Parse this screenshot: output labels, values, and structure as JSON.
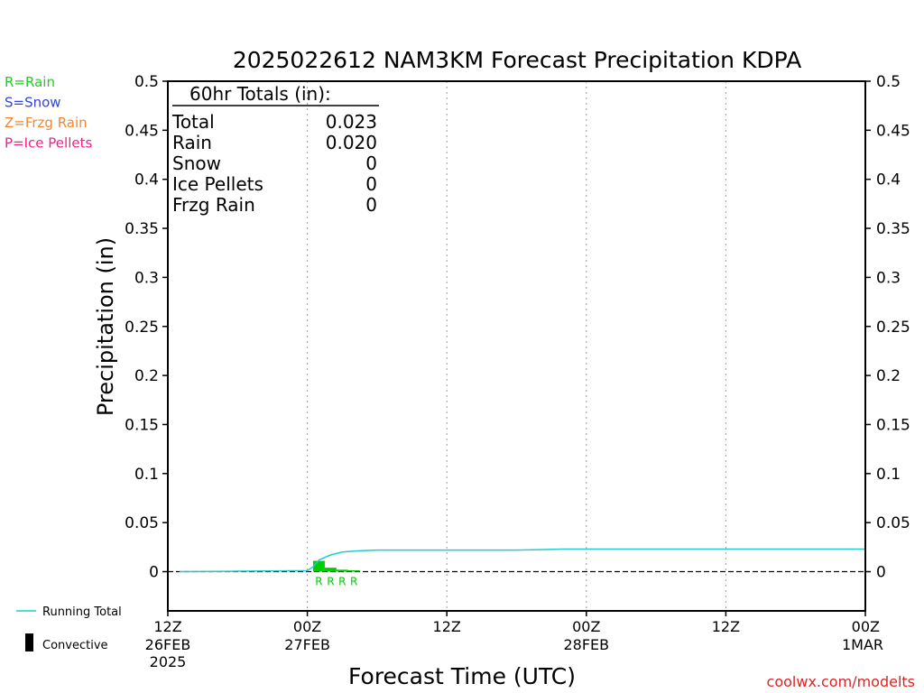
{
  "chart_data": {
    "type": "bar",
    "title": "2025022612 NAM3KM Forecast Precipitation KDPA",
    "xlabel": "Forecast Time (UTC)",
    "ylabel": "Precipitation (in)",
    "ylim": [
      -0.04,
      0.5
    ],
    "yticks": [
      0,
      0.05,
      0.1,
      0.15,
      0.2,
      0.25,
      0.3,
      0.35,
      0.4,
      0.45,
      0.5
    ],
    "ytick_labels": [
      "0",
      "0.05",
      "0.1",
      "0.15",
      "0.2",
      "0.25",
      "0.3",
      "0.35",
      "0.4",
      "0.45",
      "0.5"
    ],
    "xlim_hours": [
      0,
      60
    ],
    "xticks": [
      {
        "hour": 0,
        "line1": "12Z",
        "line2": "26FEB",
        "line3": "2025"
      },
      {
        "hour": 12,
        "line1": "00Z",
        "line2": "27FEB",
        "line3": ""
      },
      {
        "hour": 24,
        "line1": "12Z",
        "line2": "",
        "line3": ""
      },
      {
        "hour": 36,
        "line1": "00Z",
        "line2": "28FEB",
        "line3": ""
      },
      {
        "hour": 48,
        "line1": "12Z",
        "line2": "",
        "line3": ""
      },
      {
        "hour": 60,
        "line1": "00Z",
        "line2": "1MAR",
        "line3": ""
      }
    ],
    "grid": "vertical dotted",
    "precip_bars": [
      {
        "hour": 13,
        "value": 0.011,
        "ptype": "R"
      },
      {
        "hour": 14,
        "value": 0.004,
        "ptype": "R"
      },
      {
        "hour": 15,
        "value": 0.002,
        "ptype": "R"
      },
      {
        "hour": 16,
        "value": 0.0005,
        "ptype": "R"
      }
    ],
    "running_total": {
      "name": "Running Total",
      "x": [
        1,
        6,
        12,
        12.5,
        13,
        14,
        15,
        16,
        17,
        18,
        20,
        24,
        30,
        32,
        34,
        36,
        48,
        60
      ],
      "y": [
        0,
        0.0005,
        0.001,
        0.005,
        0.012,
        0.017,
        0.02,
        0.021,
        0.0215,
        0.022,
        0.022,
        0.022,
        0.022,
        0.0225,
        0.023,
        0.023,
        0.023,
        0.023
      ]
    },
    "totals_box": {
      "heading": "60hr Totals (in):",
      "rows": [
        {
          "label": "Total",
          "value": "0.023"
        },
        {
          "label": "Rain",
          "value": "0.020"
        },
        {
          "label": "Snow",
          "value": "0"
        },
        {
          "label": "Ice Pellets",
          "value": "0"
        },
        {
          "label": "Frzg Rain",
          "value": "0"
        }
      ]
    },
    "ptype_legend": [
      {
        "text": "R=Rain",
        "color": "#22cc22"
      },
      {
        "text": "S=Snow",
        "color": "#3344dd"
      },
      {
        "text": "Z=Frzg Rain",
        "color": "#ee8833"
      },
      {
        "text": "P=Ice Pellets",
        "color": "#ee2288"
      }
    ],
    "bottom_legend": [
      {
        "text": "Running Total",
        "color": "#22cccc"
      },
      {
        "text": "Convective",
        "color": "#000000"
      }
    ],
    "watermark": "coolwx.com/modelts",
    "colors": {
      "rain": "#00cc00",
      "running_total": "#22cccc",
      "watermark": "#dd2222"
    }
  }
}
